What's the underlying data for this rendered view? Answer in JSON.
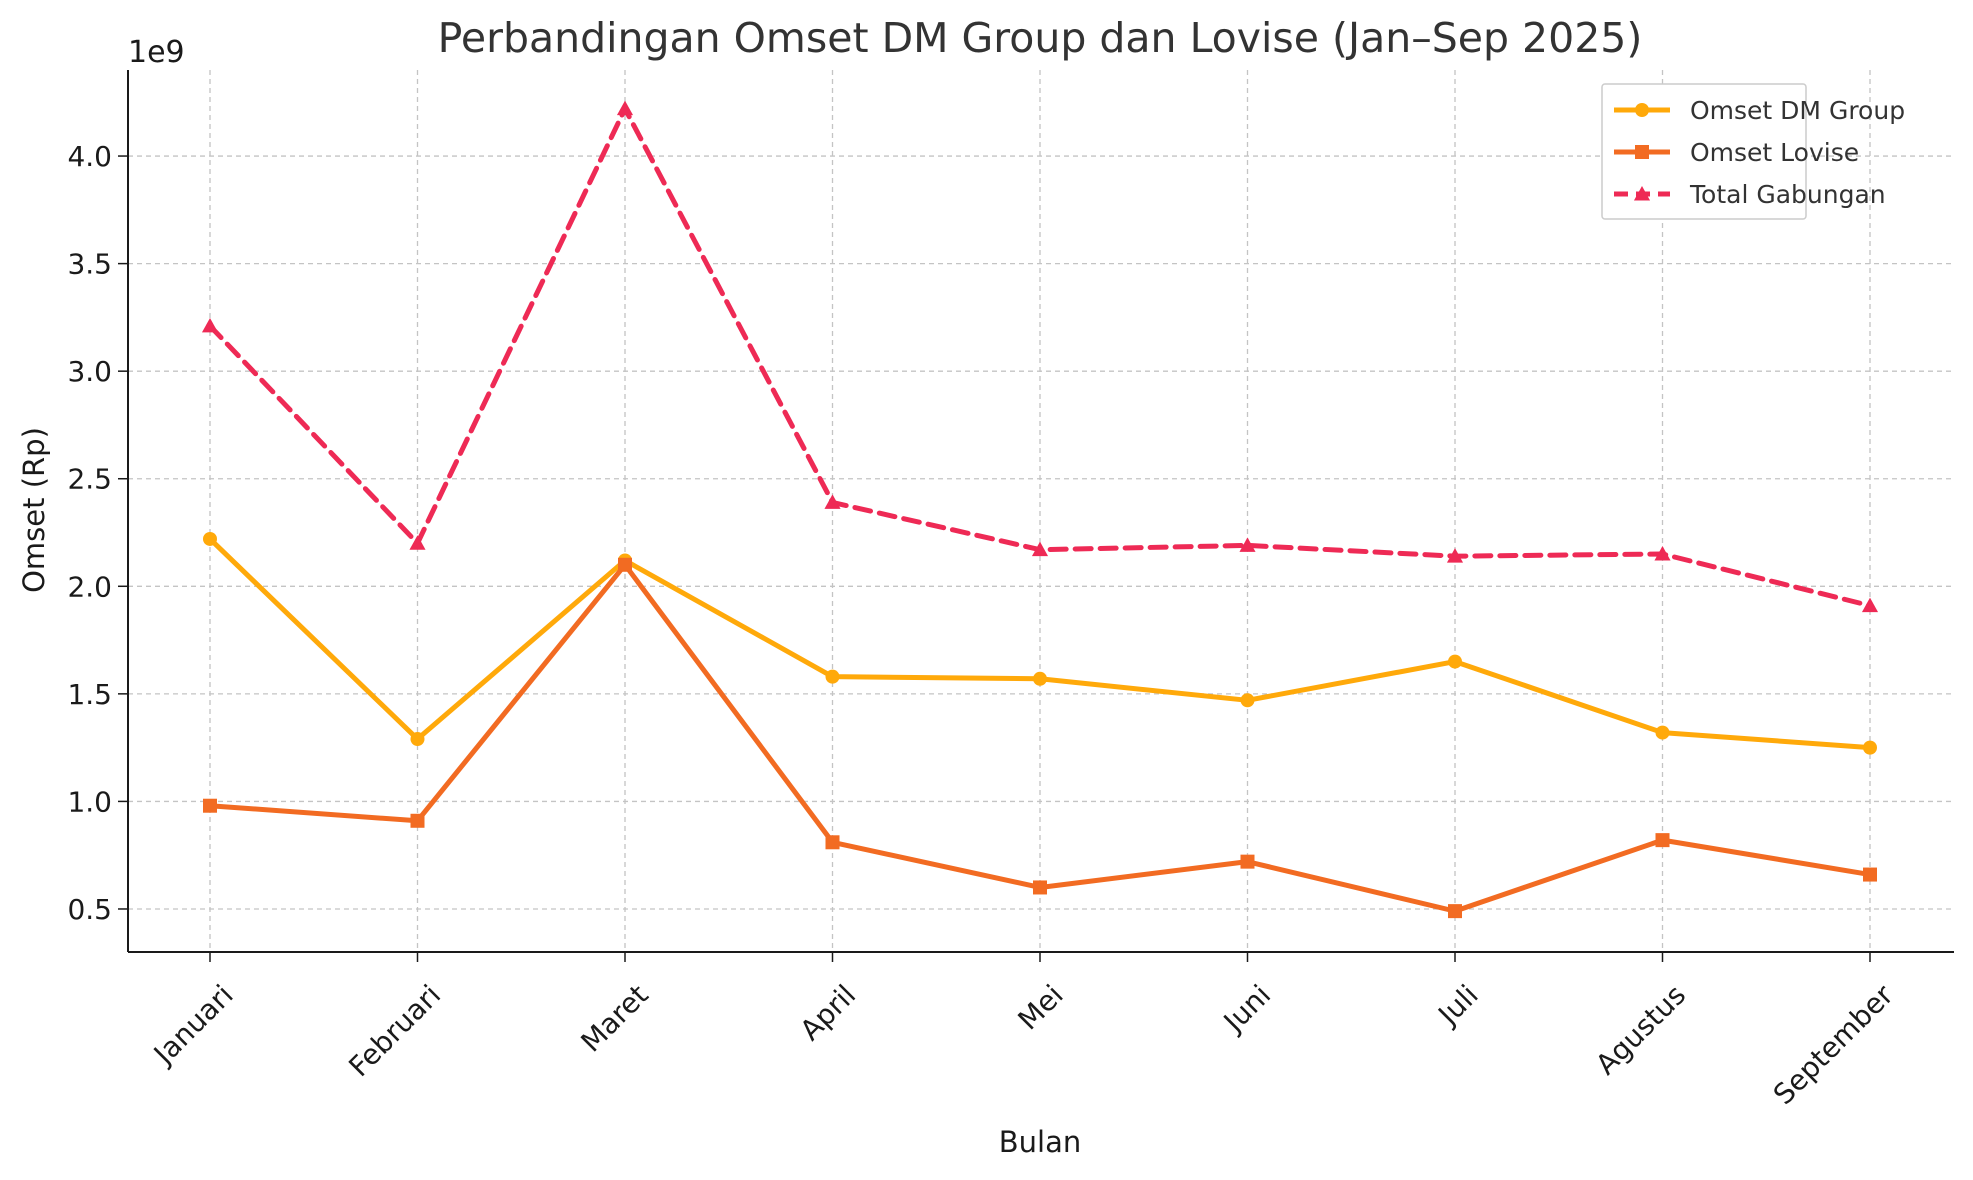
{
  "chart_data": {
    "type": "line",
    "title": "Perbandingan Omset DM Group dan Lovise (Jan–Sep 2025)",
    "xlabel": "Bulan",
    "ylabel": "Omset (Rp)",
    "y_offset_label": "1e9",
    "categories": [
      "Januari",
      "Februari",
      "Maret",
      "April",
      "Mei",
      "Juni",
      "Juli",
      "Agustus",
      "September"
    ],
    "ylim": [
      0.3,
      4.4
    ],
    "yticks": [
      0.5,
      1.0,
      1.5,
      2.0,
      2.5,
      3.0,
      3.5,
      4.0
    ],
    "ytick_labels": [
      "0.5",
      "1.0",
      "1.5",
      "2.0",
      "2.5",
      "3.0",
      "3.5",
      "4.0"
    ],
    "grid": true,
    "legend_position": "top-right",
    "series": [
      {
        "name": "Omset DM Group",
        "color": "#FFA90A",
        "marker": "circle",
        "dashed": false,
        "values": [
          2.22,
          1.29,
          2.12,
          1.58,
          1.57,
          1.47,
          1.65,
          1.32,
          1.25
        ]
      },
      {
        "name": "Omset Lovise",
        "color": "#F26B22",
        "marker": "square",
        "dashed": false,
        "values": [
          0.98,
          0.91,
          2.1,
          0.81,
          0.6,
          0.72,
          0.49,
          0.82,
          0.66
        ]
      },
      {
        "name": "Total Gabungan",
        "color": "#EE2A55",
        "marker": "triangle",
        "dashed": true,
        "values": [
          3.21,
          2.2,
          4.22,
          2.39,
          2.17,
          2.19,
          2.14,
          2.15,
          1.91
        ]
      }
    ]
  }
}
